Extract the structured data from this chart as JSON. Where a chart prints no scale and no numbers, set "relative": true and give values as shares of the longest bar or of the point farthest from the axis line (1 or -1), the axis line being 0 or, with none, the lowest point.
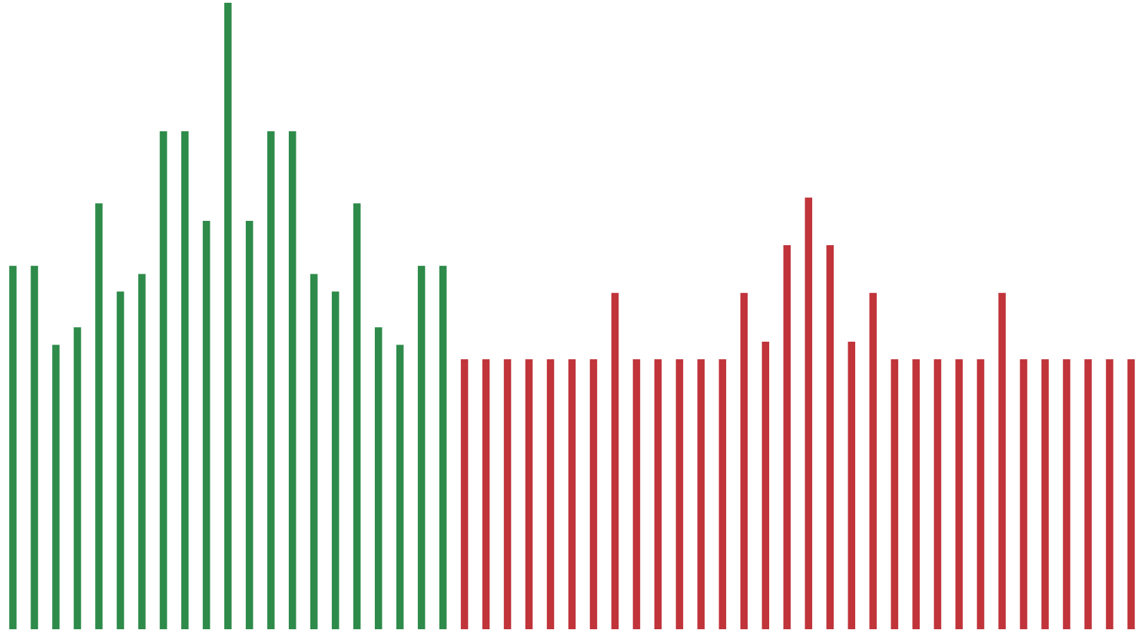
{
  "chart_data": {
    "type": "bar",
    "relative": true,
    "categories": [
      null,
      null,
      null,
      null,
      null,
      null,
      null,
      null,
      null,
      null,
      null,
      null,
      null,
      null,
      null,
      null,
      null,
      null,
      null,
      null,
      null,
      null,
      null,
      null,
      null,
      null,
      null,
      null,
      null,
      null,
      null,
      null,
      null,
      null,
      null,
      null,
      null,
      null,
      null,
      null,
      null,
      null,
      null,
      null,
      null,
      null,
      null,
      null,
      null,
      null,
      null,
      null,
      null
    ],
    "values": [
      0.58,
      0.58,
      0.454,
      0.482,
      0.68,
      0.539,
      0.567,
      0.795,
      0.795,
      0.652,
      1,
      0.652,
      0.795,
      0.795,
      0.567,
      0.539,
      0.68,
      0.482,
      0.454,
      0.58,
      0.58,
      0.431,
      0.431,
      0.431,
      0.431,
      0.431,
      0.431,
      0.431,
      0.537,
      0.431,
      0.431,
      0.431,
      0.431,
      0.431,
      0.537,
      0.459,
      0.613,
      0.689,
      0.613,
      0.459,
      0.537,
      0.431,
      0.431,
      0.431,
      0.431,
      0.431,
      0.537,
      0.431,
      0.431,
      0.431,
      0.431,
      0.431,
      0.431
    ],
    "colors": [
      "#2e8b4a",
      "#2e8b4a",
      "#2e8b4a",
      "#2e8b4a",
      "#2e8b4a",
      "#2e8b4a",
      "#2e8b4a",
      "#2e8b4a",
      "#2e8b4a",
      "#2e8b4a",
      "#2e8b4a",
      "#2e8b4a",
      "#2e8b4a",
      "#2e8b4a",
      "#2e8b4a",
      "#2e8b4a",
      "#2e8b4a",
      "#2e8b4a",
      "#2e8b4a",
      "#2e8b4a",
      "#2e8b4a",
      "#c0343a",
      "#c0343a",
      "#c0343a",
      "#c0343a",
      "#c0343a",
      "#c0343a",
      "#c0343a",
      "#c0343a",
      "#c0343a",
      "#c0343a",
      "#c0343a",
      "#c0343a",
      "#c0343a",
      "#c0343a",
      "#c0343a",
      "#c0343a",
      "#c0343a",
      "#c0343a",
      "#c0343a",
      "#c0343a",
      "#c0343a",
      "#c0343a",
      "#c0343a",
      "#c0343a",
      "#c0343a",
      "#c0343a",
      "#c0343a",
      "#c0343a",
      "#c0343a",
      "#c0343a",
      "#c0343a",
      "#c0343a"
    ],
    "grid": false
  }
}
